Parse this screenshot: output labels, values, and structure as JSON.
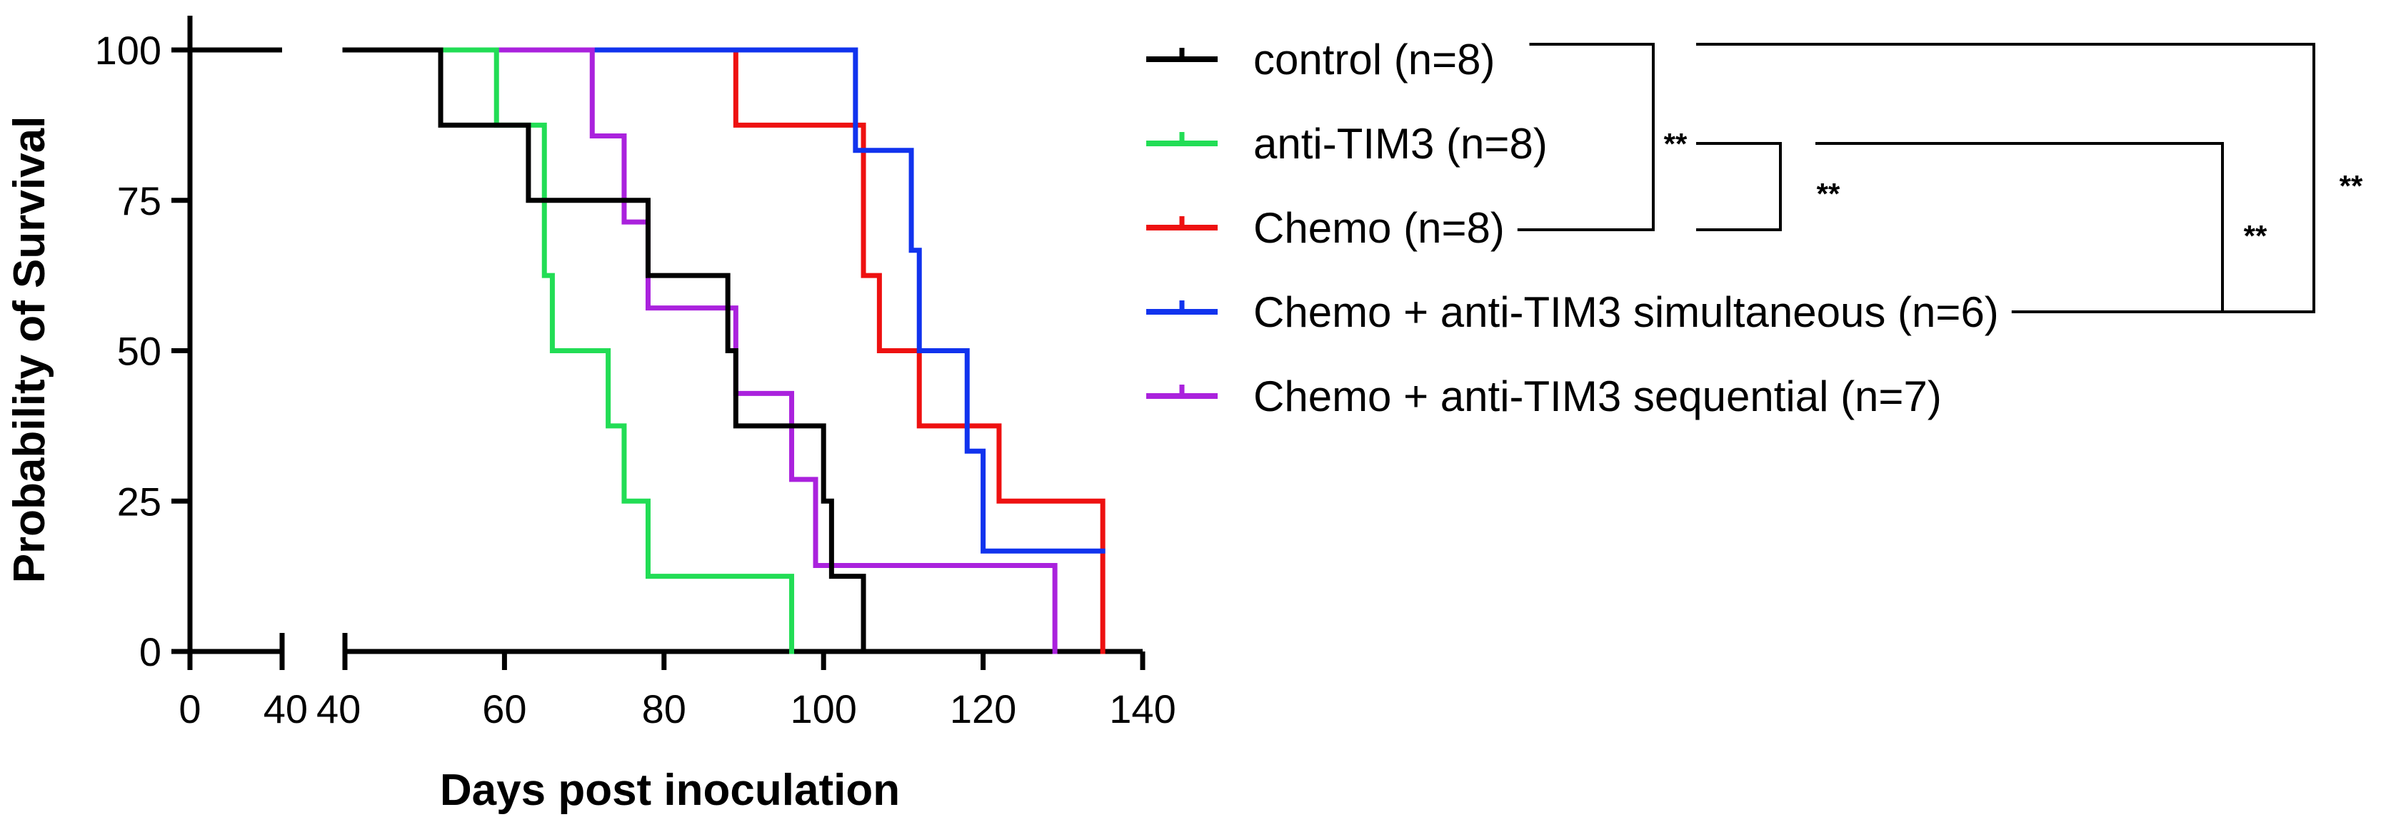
{
  "chart_data": {
    "type": "line",
    "subtype": "kaplan-meier",
    "xlabel": "Days post inoculation",
    "ylabel": "Probability of Survival",
    "x_axis_break": true,
    "x_segments": [
      {
        "range": [
          0,
          40
        ],
        "ticks": [
          0,
          40
        ],
        "tick_labels": [
          "0",
          "40"
        ]
      },
      {
        "range": [
          40,
          140
        ],
        "ticks": [
          40,
          60,
          80,
          100,
          120,
          140
        ],
        "tick_labels": [
          "40",
          "60",
          "80",
          "100",
          "120",
          "140"
        ]
      }
    ],
    "ylim": [
      0,
      100
    ],
    "yticks": [
      0,
      25,
      50,
      75,
      100
    ],
    "ytick_labels": [
      "0",
      "25",
      "50",
      "75",
      "100"
    ],
    "grid": false,
    "legend_position": "right",
    "series": [
      {
        "name": "control (n=8)",
        "color": "#000000",
        "steps": [
          [
            0,
            100
          ],
          [
            52,
            87.5
          ],
          [
            63,
            75
          ],
          [
            78,
            62.5
          ],
          [
            88,
            50
          ],
          [
            89,
            37.5
          ],
          [
            100,
            25
          ],
          [
            101,
            12.5
          ],
          [
            105,
            0
          ]
        ]
      },
      {
        "name": "anti-TIM3 (n=8)",
        "color": "#22dd55",
        "steps": [
          [
            0,
            100
          ],
          [
            59,
            87.5
          ],
          [
            65,
            62.5
          ],
          [
            66,
            50
          ],
          [
            73,
            37.5
          ],
          [
            75,
            25
          ],
          [
            78,
            12.5
          ],
          [
            96,
            0
          ]
        ]
      },
      {
        "name": "Chemo (n=8)",
        "color": "#ee1111",
        "steps": [
          [
            0,
            100
          ],
          [
            89,
            87.5
          ],
          [
            105,
            62.5
          ],
          [
            107,
            50
          ],
          [
            112,
            37.5
          ],
          [
            122,
            25
          ],
          [
            135,
            0
          ]
        ]
      },
      {
        "name": "Chemo + anti-TIM3 simultaneous (n=6)",
        "color": "#1133ee",
        "steps": [
          [
            0,
            100
          ],
          [
            104,
            83.3
          ],
          [
            111,
            66.7
          ],
          [
            112,
            50
          ],
          [
            118,
            33.3
          ],
          [
            120,
            16.7
          ],
          [
            135,
            16.7
          ]
        ]
      },
      {
        "name": "Chemo + anti-TIM3 sequential (n=7)",
        "color": "#aa22dd",
        "steps": [
          [
            0,
            100
          ],
          [
            71,
            85.7
          ],
          [
            75,
            71.4
          ],
          [
            78,
            57.1
          ],
          [
            89,
            42.9
          ],
          [
            96,
            28.6
          ],
          [
            99,
            14.3
          ],
          [
            129,
            0
          ]
        ]
      }
    ],
    "annotations": [
      {
        "text": "**",
        "compares": [
          "control (n=8)",
          "Chemo (n=8)"
        ]
      },
      {
        "text": "**",
        "compares": [
          "anti-TIM3 (n=8)",
          "Chemo (n=8)"
        ]
      },
      {
        "text": "**",
        "compares": [
          "anti-TIM3 (n=8)",
          "Chemo + anti-TIM3 simultaneous (n=6)"
        ]
      },
      {
        "text": "**",
        "compares": [
          "control (n=8)",
          "Chemo + anti-TIM3 simultaneous (n=6)"
        ]
      }
    ]
  }
}
